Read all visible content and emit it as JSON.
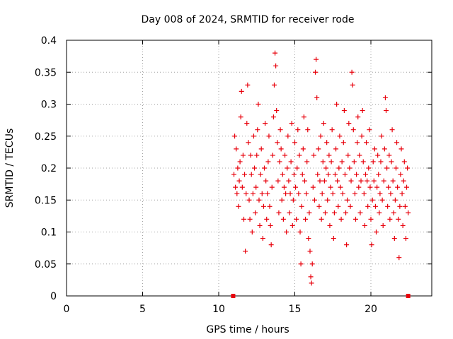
{
  "chart_data": {
    "type": "scatter",
    "title": "Day 008 of 2024, SRMTID for receiver rode",
    "xlabel": "GPS time / hours",
    "ylabel": "SRMTID / TECUs",
    "xlim": [
      0,
      24
    ],
    "ylim": [
      0,
      0.4
    ],
    "grid": true,
    "marker": "+",
    "color": "#e8000b",
    "x_ticks": [
      {
        "value": 0,
        "label": "0"
      },
      {
        "value": 5,
        "label": "5"
      },
      {
        "value": 10,
        "label": "10"
      },
      {
        "value": 15,
        "label": "15"
      },
      {
        "value": 20,
        "label": "20"
      }
    ],
    "y_ticks": [
      {
        "value": 0,
        "label": "0"
      },
      {
        "value": 0.05,
        "label": "0.05"
      },
      {
        "value": 0.1,
        "label": "0.1"
      },
      {
        "value": 0.15,
        "label": "0.15"
      },
      {
        "value": 0.2,
        "label": "0.2"
      },
      {
        "value": 0.25,
        "label": "0.25"
      },
      {
        "value": 0.3,
        "label": "0.3"
      },
      {
        "value": 0.35,
        "label": "0.35"
      },
      {
        "value": 0.4,
        "label": "0.4"
      }
    ],
    "data_range_markers": [
      {
        "x": 10.95,
        "y": 0
      },
      {
        "x": 22.45,
        "y": 0
      }
    ],
    "series": [
      {
        "name": "SRMTID",
        "points": [
          [
            11.0,
            0.19
          ],
          [
            11.05,
            0.25
          ],
          [
            11.1,
            0.17
          ],
          [
            11.15,
            0.23
          ],
          [
            11.2,
            0.16
          ],
          [
            11.25,
            0.2
          ],
          [
            11.3,
            0.14
          ],
          [
            11.35,
            0.18
          ],
          [
            11.4,
            0.21
          ],
          [
            11.45,
            0.28
          ],
          [
            11.5,
            0.32
          ],
          [
            11.55,
            0.17
          ],
          [
            11.6,
            0.22
          ],
          [
            11.65,
            0.12
          ],
          [
            11.7,
            0.19
          ],
          [
            11.75,
            0.07
          ],
          [
            11.8,
            0.16
          ],
          [
            11.85,
            0.27
          ],
          [
            11.9,
            0.33
          ],
          [
            11.95,
            0.24
          ],
          [
            12.0,
            0.15
          ],
          [
            12.05,
            0.12
          ],
          [
            12.1,
            0.22
          ],
          [
            12.15,
            0.19
          ],
          [
            12.2,
            0.1
          ],
          [
            12.25,
            0.16
          ],
          [
            12.3,
            0.25
          ],
          [
            12.35,
            0.2
          ],
          [
            12.4,
            0.13
          ],
          [
            12.45,
            0.17
          ],
          [
            12.5,
            0.22
          ],
          [
            12.55,
            0.26
          ],
          [
            12.6,
            0.3
          ],
          [
            12.65,
            0.15
          ],
          [
            12.7,
            0.11
          ],
          [
            12.75,
            0.19
          ],
          [
            12.8,
            0.23
          ],
          [
            12.85,
            0.16
          ],
          [
            12.9,
            0.09
          ],
          [
            12.95,
            0.14
          ],
          [
            13.0,
            0.2
          ],
          [
            13.05,
            0.27
          ],
          [
            13.1,
            0.18
          ],
          [
            13.15,
            0.12
          ],
          [
            13.2,
            0.16
          ],
          [
            13.25,
            0.21
          ],
          [
            13.3,
            0.25
          ],
          [
            13.35,
            0.14
          ],
          [
            13.4,
            0.11
          ],
          [
            13.45,
            0.08
          ],
          [
            13.5,
            0.17
          ],
          [
            13.55,
            0.22
          ],
          [
            13.6,
            0.28
          ],
          [
            13.65,
            0.33
          ],
          [
            13.7,
            0.38
          ],
          [
            13.75,
            0.36
          ],
          [
            13.8,
            0.29
          ],
          [
            13.85,
            0.24
          ],
          [
            13.9,
            0.18
          ],
          [
            13.95,
            0.13
          ],
          [
            14.0,
            0.21
          ],
          [
            14.05,
            0.26
          ],
          [
            14.1,
            0.23
          ],
          [
            14.15,
            0.15
          ],
          [
            14.2,
            0.19
          ],
          [
            14.25,
            0.12
          ],
          [
            14.3,
            0.17
          ],
          [
            14.35,
            0.22
          ],
          [
            14.4,
            0.16
          ],
          [
            14.45,
            0.1
          ],
          [
            14.5,
            0.2
          ],
          [
            14.55,
            0.25
          ],
          [
            14.6,
            0.18
          ],
          [
            14.65,
            0.13
          ],
          [
            14.7,
            0.16
          ],
          [
            14.75,
            0.21
          ],
          [
            14.8,
            0.27
          ],
          [
            14.85,
            0.11
          ],
          [
            14.9,
            0.15
          ],
          [
            14.95,
            0.19
          ],
          [
            15.0,
            0.24
          ],
          [
            15.05,
            0.17
          ],
          [
            15.1,
            0.12
          ],
          [
            15.15,
            0.2
          ],
          [
            15.2,
            0.26
          ],
          [
            15.25,
            0.16
          ],
          [
            15.3,
            0.22
          ],
          [
            15.35,
            0.1
          ],
          [
            15.4,
            0.05
          ],
          [
            15.45,
            0.14
          ],
          [
            15.5,
            0.19
          ],
          [
            15.55,
            0.23
          ],
          [
            15.6,
            0.28
          ],
          [
            15.65,
            0.18
          ],
          [
            15.7,
            0.12
          ],
          [
            15.75,
            0.16
          ],
          [
            15.8,
            0.21
          ],
          [
            15.85,
            0.26
          ],
          [
            15.9,
            0.09
          ],
          [
            15.95,
            0.13
          ],
          [
            16.0,
            0.07
          ],
          [
            16.05,
            0.03
          ],
          [
            16.1,
            0.02
          ],
          [
            16.15,
            0.05
          ],
          [
            16.2,
            0.17
          ],
          [
            16.25,
            0.22
          ],
          [
            16.3,
            0.15
          ],
          [
            16.35,
            0.35
          ],
          [
            16.4,
            0.37
          ],
          [
            16.45,
            0.31
          ],
          [
            16.5,
            0.19
          ],
          [
            16.55,
            0.23
          ],
          [
            16.6,
            0.14
          ],
          [
            16.65,
            0.18
          ],
          [
            16.7,
            0.25
          ],
          [
            16.75,
            0.12
          ],
          [
            16.8,
            0.16
          ],
          [
            16.85,
            0.21
          ],
          [
            16.9,
            0.27
          ],
          [
            16.95,
            0.18
          ],
          [
            17.0,
            0.13
          ],
          [
            17.05,
            0.2
          ],
          [
            17.1,
            0.24
          ],
          [
            17.15,
            0.15
          ],
          [
            17.2,
            0.19
          ],
          [
            17.25,
            0.22
          ],
          [
            17.3,
            0.11
          ],
          [
            17.35,
            0.17
          ],
          [
            17.4,
            0.21
          ],
          [
            17.45,
            0.26
          ],
          [
            17.5,
            0.16
          ],
          [
            17.55,
            0.09
          ],
          [
            17.6,
            0.13
          ],
          [
            17.65,
            0.19
          ],
          [
            17.7,
            0.23
          ],
          [
            17.75,
            0.3
          ],
          [
            17.8,
            0.18
          ],
          [
            17.85,
            0.14
          ],
          [
            17.9,
            0.2
          ],
          [
            17.95,
            0.25
          ],
          [
            18.0,
            0.17
          ],
          [
            18.05,
            0.12
          ],
          [
            18.1,
            0.21
          ],
          [
            18.15,
            0.16
          ],
          [
            18.2,
            0.24
          ],
          [
            18.25,
            0.29
          ],
          [
            18.3,
            0.19
          ],
          [
            18.35,
            0.13
          ],
          [
            18.4,
            0.08
          ],
          [
            18.45,
            0.15
          ],
          [
            18.5,
            0.22
          ],
          [
            18.55,
            0.27
          ],
          [
            18.6,
            0.2
          ],
          [
            18.65,
            0.14
          ],
          [
            18.7,
            0.18
          ],
          [
            18.75,
            0.35
          ],
          [
            18.8,
            0.33
          ],
          [
            18.85,
            0.26
          ],
          [
            18.9,
            0.21
          ],
          [
            18.95,
            0.16
          ],
          [
            19.0,
            0.12
          ],
          [
            19.05,
            0.19
          ],
          [
            19.1,
            0.24
          ],
          [
            19.15,
            0.28
          ],
          [
            19.2,
            0.17
          ],
          [
            19.25,
            0.22
          ],
          [
            19.3,
            0.13
          ],
          [
            19.35,
            0.18
          ],
          [
            19.4,
            0.25
          ],
          [
            19.45,
            0.29
          ],
          [
            19.5,
            0.21
          ],
          [
            19.55,
            0.16
          ],
          [
            19.6,
            0.11
          ],
          [
            19.65,
            0.19
          ],
          [
            19.7,
            0.24
          ],
          [
            19.75,
            0.18
          ],
          [
            19.8,
            0.14
          ],
          [
            19.85,
            0.2
          ],
          [
            19.9,
            0.26
          ],
          [
            19.95,
            0.17
          ],
          [
            20.0,
            0.12
          ],
          [
            20.05,
            0.08
          ],
          [
            20.1,
            0.15
          ],
          [
            20.15,
            0.21
          ],
          [
            20.2,
            0.18
          ],
          [
            20.25,
            0.23
          ],
          [
            20.3,
            0.14
          ],
          [
            20.35,
            0.1
          ],
          [
            20.4,
            0.17
          ],
          [
            20.45,
            0.22
          ],
          [
            20.5,
            0.19
          ],
          [
            20.55,
            0.13
          ],
          [
            20.6,
            0.16
          ],
          [
            20.65,
            0.21
          ],
          [
            20.7,
            0.25
          ],
          [
            20.75,
            0.15
          ],
          [
            20.8,
            0.11
          ],
          [
            20.85,
            0.18
          ],
          [
            20.9,
            0.23
          ],
          [
            20.95,
            0.31
          ],
          [
            21.0,
            0.29
          ],
          [
            21.05,
            0.2
          ],
          [
            21.1,
            0.14
          ],
          [
            21.15,
            0.17
          ],
          [
            21.2,
            0.22
          ],
          [
            21.25,
            0.12
          ],
          [
            21.3,
            0.16
          ],
          [
            21.35,
            0.21
          ],
          [
            21.4,
            0.26
          ],
          [
            21.45,
            0.18
          ],
          [
            21.5,
            0.13
          ],
          [
            21.55,
            0.09
          ],
          [
            21.6,
            0.15
          ],
          [
            21.65,
            0.2
          ],
          [
            21.7,
            0.24
          ],
          [
            21.75,
            0.17
          ],
          [
            21.8,
            0.12
          ],
          [
            21.85,
            0.06
          ],
          [
            21.9,
            0.14
          ],
          [
            21.95,
            0.19
          ],
          [
            22.0,
            0.23
          ],
          [
            22.05,
            0.16
          ],
          [
            22.1,
            0.11
          ],
          [
            22.15,
            0.18
          ],
          [
            22.2,
            0.21
          ],
          [
            22.25,
            0.14
          ],
          [
            22.3,
            0.09
          ],
          [
            22.35,
            0.17
          ],
          [
            22.4,
            0.2
          ],
          [
            22.45,
            0.13
          ]
        ]
      }
    ]
  }
}
